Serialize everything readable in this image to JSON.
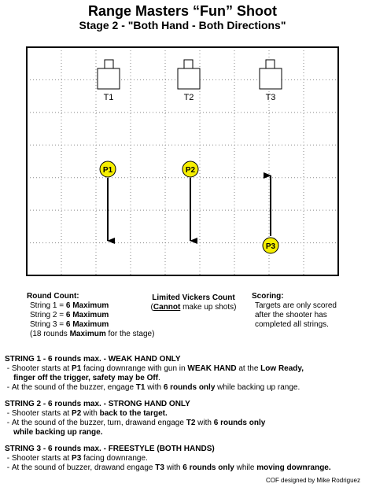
{
  "title": "Range Masters “Fun” Shoot",
  "subtitle": "Stage 2 - \"Both Hand - Both Directions\"",
  "diagram": {
    "targets": [
      {
        "label": "T1"
      },
      {
        "label": "T2"
      },
      {
        "label": "T3"
      }
    ],
    "positions": [
      {
        "label": "P1",
        "direction": "downrange"
      },
      {
        "label": "P2",
        "direction": "downrange"
      },
      {
        "label": "P3",
        "direction": "uprange"
      }
    ],
    "colors": {
      "position_marker": "#f5ee00",
      "arrow": "#000000",
      "grid": "#888888"
    }
  },
  "round_count": {
    "heading": "Round Count:",
    "lines": [
      {
        "prefix": "String 1 = ",
        "bold": "6 Maximum"
      },
      {
        "prefix": "String 2 = ",
        "bold": "6 Maximum"
      },
      {
        "prefix": "String 3 = ",
        "bold": "6 Maximum"
      }
    ],
    "total": {
      "open": "(18 rounds ",
      "bold": "Maximum",
      "rest": " for the stage)"
    }
  },
  "vickers": {
    "heading": "Limited Vickers Count",
    "note_open": "(",
    "note_bold": "Cannot",
    "note_rest": " make up shots)"
  },
  "scoring": {
    "heading": "Scoring:",
    "lines": [
      "Targets are only scored",
      "after the shooter has",
      "completed all strings."
    ]
  },
  "strings": [
    {
      "heading": "STRING 1 - 6 rounds max. - WEAK HAND ONLY",
      "lines": [
        [
          {
            "t": " - Shooter starts at "
          },
          {
            "t": "P1",
            "b": true
          },
          {
            "t": " facing downrange with gun in "
          },
          {
            "t": "WEAK HAND",
            "b": true
          },
          {
            "t": " at the "
          },
          {
            "t": "Low Ready,",
            "b": true
          }
        ],
        [
          {
            "t": "    "
          },
          {
            "t": "finger off the trigger, safety may be Off",
            "b": true
          },
          {
            "t": "."
          }
        ],
        [
          {
            "t": " - At the sound of the buzzer, engage "
          },
          {
            "t": "T1",
            "b": true
          },
          {
            "t": " with "
          },
          {
            "t": "6 rounds only",
            "b": true
          },
          {
            "t": " while backing up range."
          }
        ]
      ]
    },
    {
      "heading": "STRING 2 - 6 rounds max. - STRONG HAND ONLY",
      "lines": [
        [
          {
            "t": " - Shooter starts at "
          },
          {
            "t": "P2",
            "b": true
          },
          {
            "t": " with "
          },
          {
            "t": "back to the target.",
            "b": true
          }
        ],
        [
          {
            "t": " - At the sound of the buzzer, turn, drawand engage "
          },
          {
            "t": "T2",
            "b": true
          },
          {
            "t": " with "
          },
          {
            "t": "6 rounds only",
            "b": true
          }
        ],
        [
          {
            "t": "    "
          },
          {
            "t": "while backing up range.",
            "b": true
          }
        ]
      ]
    },
    {
      "heading": "STRING 3 - 6 rounds max. - FREESTYLE (BOTH HANDS)",
      "lines": [
        [
          {
            "t": " - Shooter starts at "
          },
          {
            "t": "P3",
            "b": true
          },
          {
            "t": " facing downrange."
          }
        ],
        [
          {
            "t": " - At the sound of buzzer, drawand engage "
          },
          {
            "t": "T3",
            "b": true
          },
          {
            "t": " with "
          },
          {
            "t": "6 rounds only",
            "b": true
          },
          {
            "t": " while "
          },
          {
            "t": "moving downrange.",
            "b": true
          }
        ]
      ]
    }
  ],
  "credit": "COF designed by Mike Rodriguez"
}
